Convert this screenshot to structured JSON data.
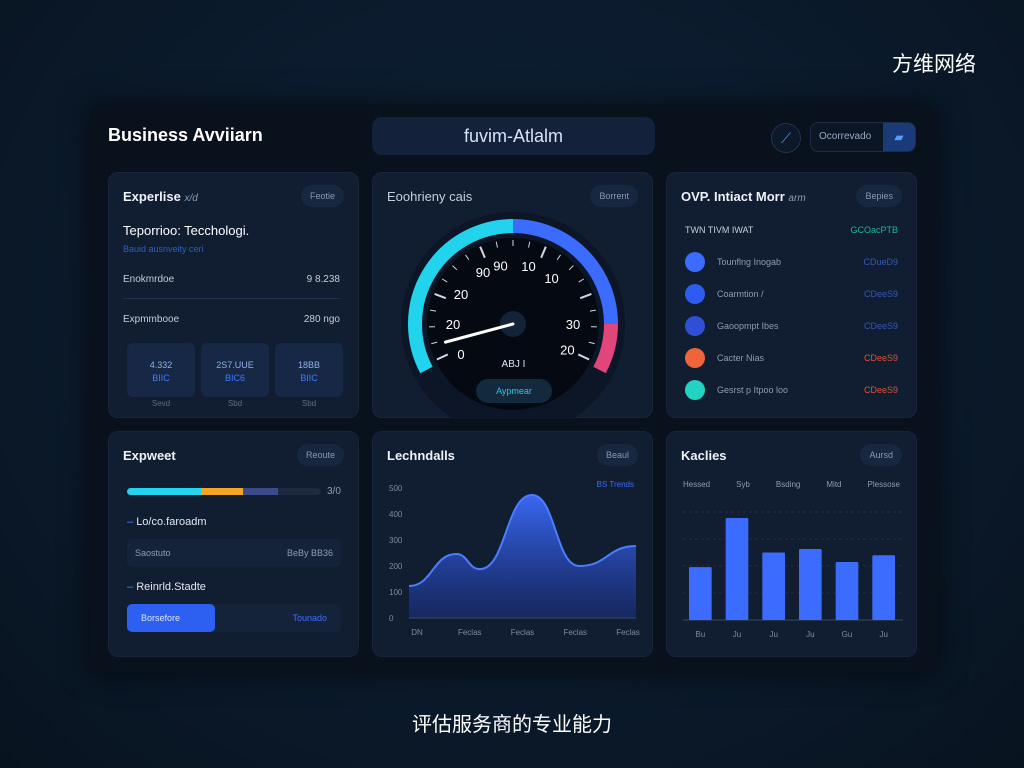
{
  "slide": {
    "brand": "方维网络",
    "caption": "评估服务商的专业能力"
  },
  "header": {
    "title": "Business Avviiarn",
    "center_title": "fuvim-Atlalm",
    "icon": "chart-icon",
    "search_placeholder": "Ocorrevado",
    "search_icon": "folder-icon"
  },
  "card_expertise": {
    "title": "Experlise",
    "title_suffix": "x/d",
    "button": "Feotie",
    "heading": "Teporrioo: Tecchologi.",
    "subheading": "Bauid ausnveity ceri",
    "rows": [
      {
        "label": "Enokmrdoe",
        "value": "9 8.238"
      },
      {
        "label": "Expmmbooe",
        "value": "280 ngo"
      }
    ],
    "tiles": [
      {
        "top": "4.332",
        "bottom": "BIIC",
        "label": "Sevd"
      },
      {
        "top": "2S7.UUE",
        "bottom": "BIC6",
        "label": "Sbd"
      },
      {
        "top": "18BB",
        "bottom": "BIIC",
        "label": "Sbd"
      }
    ]
  },
  "card_gauge": {
    "title": "Eoohrieny cais",
    "button": "Borrent",
    "ticks": [
      "0",
      "20",
      "20",
      "90",
      "90",
      "10",
      "10",
      "30",
      "20"
    ],
    "readout": "ABJ I",
    "action": "Aypmear",
    "colors": [
      "#22d3ee",
      "#3b6cff",
      "#e0457b"
    ],
    "needle_value": 5
  },
  "card_list": {
    "title": "OVP. Intiact Morr",
    "title_suffix": "arm",
    "button": "Bepies",
    "header_label": "TWN TIVM IWAT",
    "header_value": "GCOacPTB",
    "items": [
      {
        "label": "Tounflng Inogab",
        "value": "CDueD9",
        "color": "#3b6cff",
        "value_color": "#3559b8"
      },
      {
        "label": "Coarmtion /",
        "value": "CDeeS9",
        "color": "#2f5cf0",
        "value_color": "#3559b8"
      },
      {
        "label": "Gaoopmpt Ibes",
        "value": "CDeeS9",
        "color": "#2f4fd6",
        "value_color": "#3559b8"
      },
      {
        "label": "Cacter Nias",
        "value": "CDeeS9",
        "color": "#f0643a",
        "value_color": "#e0543a"
      },
      {
        "label": "Gesrst p Itpoo loo",
        "value": "CDeeS9",
        "color": "#22d3c4",
        "value_color": "#e0543a"
      }
    ]
  },
  "card_progress": {
    "title": "Expweet",
    "button": "Reoute",
    "progress_label": "3/0",
    "segments": [
      {
        "color": "#22d3ee",
        "value": 38
      },
      {
        "color": "#f5a524",
        "value": 22
      },
      {
        "color": "#3a4a8a",
        "value": 18
      }
    ],
    "section1": "Lo/co.faroadm",
    "field1_label": "Saostuto",
    "field1_value": "BeBy BB36",
    "section2": "Reinrld.Stadte",
    "toggle_active": "Borsefore",
    "toggle_inactive": "Tounado"
  },
  "chart_data": [
    {
      "type": "area",
      "title": "Lechndalls",
      "button": "Beaul",
      "legend": "BS Trends",
      "yticks": [
        "500",
        "400",
        "300",
        "200",
        "100",
        "0"
      ],
      "ylim": [
        0,
        500
      ],
      "categories": [
        "DN",
        "Feclas",
        "Feclas",
        "Feclas",
        "Feclas"
      ],
      "x": [
        0,
        1,
        1.5,
        2.6,
        3.6,
        4.8
      ],
      "values": [
        123,
        246,
        188,
        473,
        200,
        277
      ],
      "color": "#3b6cff"
    },
    {
      "type": "bar",
      "title": "Kaclies",
      "button": "Aursd",
      "header_labels": [
        "Hessed",
        "Syb",
        "Bsding",
        "Mitd",
        "Plessose"
      ],
      "categories": [
        "Bu",
        "Ju",
        "Ju",
        "Ju",
        "Gu",
        "Ju"
      ],
      "values": [
        1.96,
        3.78,
        2.5,
        2.63,
        2.15,
        2.4
      ],
      "ylim": [
        0,
        4
      ],
      "color": "#3b6cff"
    }
  ]
}
